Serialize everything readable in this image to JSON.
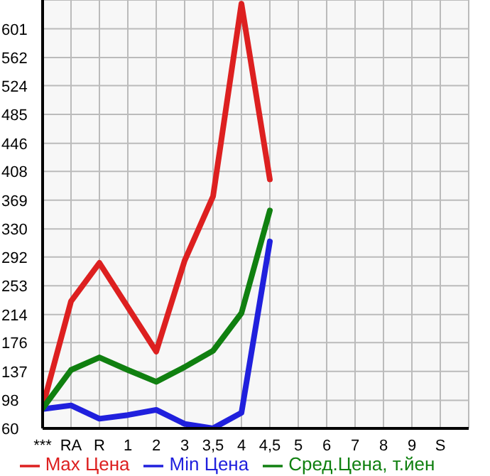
{
  "chart_data": {
    "type": "line",
    "categories": [
      "***",
      "RA",
      "R",
      "1",
      "2",
      "3",
      "3,5",
      "4",
      "4,5",
      "5",
      "6",
      "7",
      "8",
      "9",
      "S",
      null
    ],
    "series": [
      {
        "name": "Max Цена",
        "color": "#dd2020",
        "values": [
          89,
          232,
          284,
          224,
          164,
          287,
          374,
          635,
          397,
          null,
          null,
          null,
          null,
          null,
          null,
          null
        ]
      },
      {
        "name": "Min Цена",
        "color": "#2020dd",
        "values": [
          86,
          91,
          73,
          78,
          85,
          66,
          60,
          81,
          313,
          null,
          null,
          null,
          null,
          null,
          null,
          null
        ]
      },
      {
        "name": "Сред.Цена, т.йен",
        "color": "#108010",
        "values": [
          87,
          139,
          156,
          139,
          123,
          143,
          165,
          216,
          355,
          null,
          null,
          null,
          null,
          null,
          null,
          null
        ]
      }
    ],
    "ylim": [
      60,
      640
    ],
    "yticks": [
      60,
      98,
      137,
      176,
      214,
      253,
      292,
      330,
      369,
      408,
      446,
      485,
      524,
      562,
      601
    ],
    "grid": true,
    "legend": "bottom",
    "marker": "none",
    "line_style": "solid"
  }
}
